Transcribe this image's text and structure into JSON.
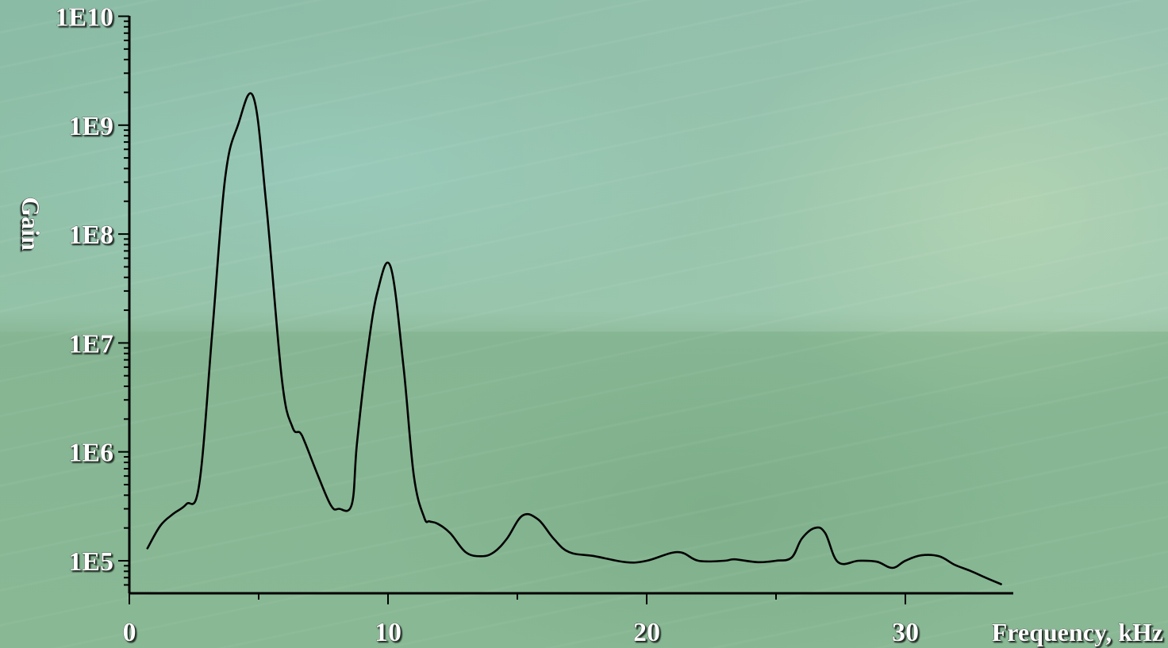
{
  "chart_data": {
    "type": "line",
    "xlabel": "Frequency, kHz",
    "ylabel": "Gain",
    "xlim": [
      0,
      34.3
    ],
    "ylim": [
      50000,
      12000000000
    ],
    "y_scale": "log",
    "x_ticks": [
      0,
      10,
      20,
      30
    ],
    "x_tick_labels": [
      "0",
      "10",
      "20",
      "30"
    ],
    "y_ticks": [
      100000,
      1000000,
      10000000,
      100000000,
      1000000000,
      10000000000
    ],
    "y_tick_labels": [
      "1E5",
      "1E6",
      "1E7",
      "1E8",
      "1E9",
      "1E10"
    ],
    "grid": false,
    "colors": {
      "line": "#000000",
      "text": "#ffffff"
    },
    "series": [
      {
        "x": [
          0.7,
          1.2,
          1.7,
          2.2,
          2.7,
          3.2,
          3.7,
          4.2,
          4.8,
          5.3,
          5.9,
          6.3,
          6.6,
          6.8,
          7.3,
          7.8,
          8.1,
          8.6,
          8.8,
          9.2,
          9.6,
          10.1,
          10.6,
          11.0,
          11.4,
          11.6,
          11.9,
          12.4,
          13.0,
          13.6,
          14.1,
          14.6,
          15.2,
          15.8,
          16.4,
          17.0,
          18.0,
          19.2,
          20.0,
          21.2,
          22.0,
          23.0,
          23.4,
          24.3,
          25.0,
          25.6,
          26.0,
          26.5,
          26.9,
          27.4,
          28.2,
          28.9,
          29.5,
          30.0,
          30.6,
          31.3,
          31.9,
          32.5,
          33.1,
          33.7
        ],
        "y": [
          130000,
          210000,
          270000,
          330000,
          500000,
          12000000,
          320000000,
          1000000000,
          1800000000,
          180000000,
          4600000,
          1700000,
          1500000,
          1200000,
          600000,
          320000,
          300000,
          330000,
          1200000,
          8000000,
          30000000,
          50000000,
          6000000,
          600000,
          250000,
          230000,
          220000,
          180000,
          120000,
          110000,
          120000,
          160000,
          260000,
          240000,
          160000,
          120000,
          110000,
          97000,
          100000,
          120000,
          100000,
          100000,
          103000,
          97000,
          100000,
          107000,
          160000,
          200000,
          180000,
          97000,
          100000,
          98000,
          86000,
          100000,
          112000,
          110000,
          92000,
          81000,
          70000,
          61000
        ]
      }
    ]
  }
}
